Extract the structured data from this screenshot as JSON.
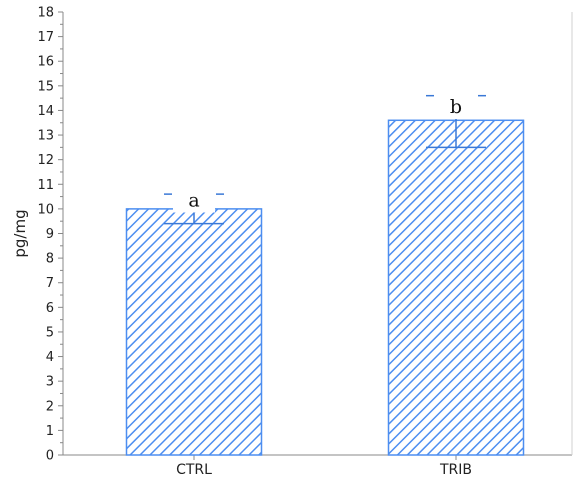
{
  "chart_data": {
    "type": "bar",
    "categories": [
      "CTRL",
      "TRIB"
    ],
    "values": [
      10.0,
      13.6
    ],
    "error_low": [
      9.4,
      12.5
    ],
    "error_high": [
      10.6,
      14.6
    ],
    "significance_labels": [
      "a",
      "b"
    ],
    "title": "",
    "xlabel": "",
    "ylabel": "pg/mg",
    "ylim": [
      0,
      18
    ],
    "yticks": [
      0,
      1,
      2,
      3,
      4,
      5,
      6,
      7,
      8,
      9,
      10,
      11,
      12,
      13,
      14,
      15,
      16,
      17,
      18
    ],
    "grid": false,
    "legend": "none",
    "colors": {
      "bar": "#4d8ef0",
      "axis": "#888888",
      "text": "#222222"
    }
  }
}
